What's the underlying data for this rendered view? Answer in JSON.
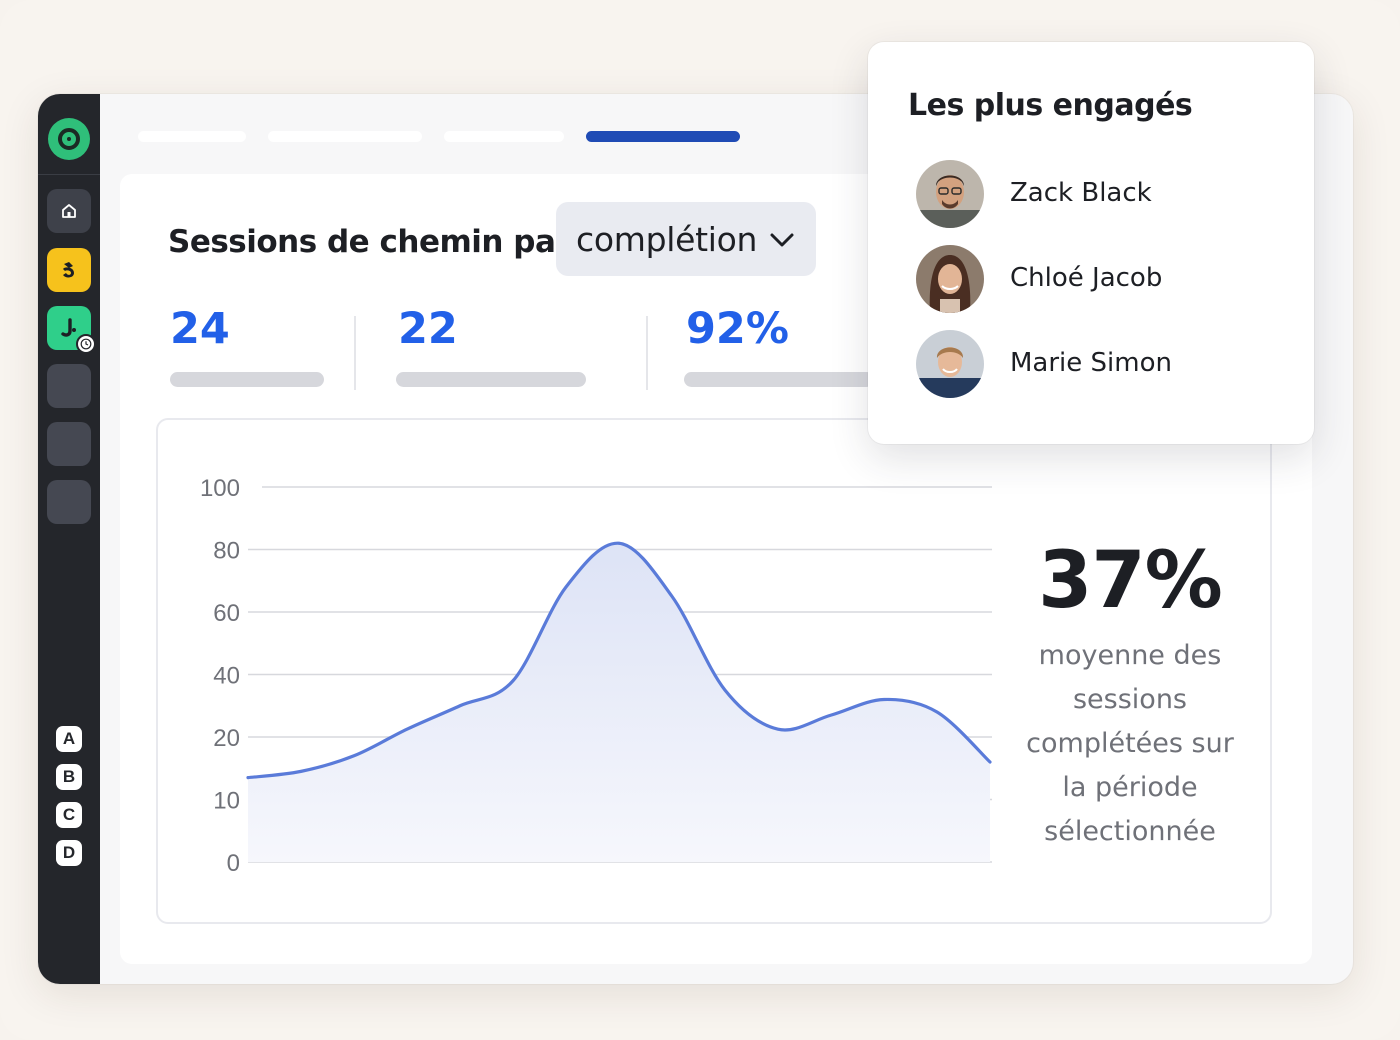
{
  "sidebar": {
    "logo_icon": "app-logo-icon",
    "items": [
      {
        "icon": "home-icon"
      },
      {
        "icon": "app-yellow-icon",
        "color": "#f6c21c"
      },
      {
        "icon": "app-green-icon",
        "color": "#2fcf8a"
      }
    ],
    "letters": [
      "A",
      "B",
      "C",
      "D"
    ]
  },
  "header": {
    "title": "Sessions de chemin par",
    "dropdown": {
      "selected": "complétion"
    }
  },
  "stats": [
    {
      "value": "24"
    },
    {
      "value": "22"
    },
    {
      "value": "92%"
    }
  ],
  "summary": {
    "value": "37%",
    "caption_lines": [
      "moyenne des",
      "sessions",
      "complétées sur",
      "la période",
      "sélectionnée"
    ]
  },
  "chart_data": {
    "type": "area",
    "title": "",
    "xlabel": "",
    "ylabel": "",
    "y_ticks": [
      "100",
      "80",
      "60",
      "40",
      "20",
      "10",
      "0"
    ],
    "series": [
      {
        "values": [
          13.5,
          14.5,
          17,
          22.5,
          30,
          38,
          68,
          82,
          65,
          35,
          22.5,
          27,
          32,
          28,
          16
        ]
      }
    ],
    "grid": true,
    "accent_color": "#5a7bd9"
  },
  "engaged": {
    "title": "Les plus engagés",
    "people": [
      {
        "name": "Zack Black"
      },
      {
        "name": "Chloé Jacob"
      },
      {
        "name": "Marie Simon"
      }
    ]
  }
}
